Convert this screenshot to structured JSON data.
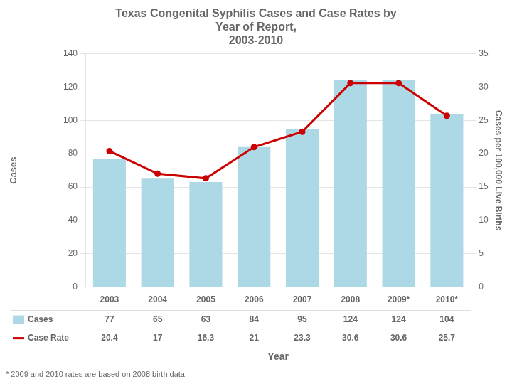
{
  "chart_data": {
    "type": "bar",
    "title": "Texas Congenital Syphilis Cases and Case Rates by\nYear of Report,\n2003-2010",
    "categories": [
      "2003",
      "2004",
      "2005",
      "2006",
      "2007",
      "2008",
      "2009*",
      "2010*"
    ],
    "series": [
      {
        "name": "Cases",
        "type": "bar",
        "color": "#add8e6",
        "values": [
          77,
          65,
          63,
          84,
          95,
          124,
          124,
          104
        ]
      },
      {
        "name": "Case Rate",
        "type": "line",
        "color": "#cc0000",
        "axis": "y2",
        "values": [
          20.4,
          17,
          16.3,
          21,
          23.3,
          30.6,
          30.6,
          25.7
        ]
      }
    ],
    "x_label": "Year",
    "y_label": "Cases",
    "y2_label": "Cases per 100,000 Live Births",
    "ylim": [
      0,
      140
    ],
    "yticks": [
      0,
      20,
      40,
      60,
      80,
      100,
      120,
      140
    ],
    "y2lim": [
      0,
      35
    ],
    "y2ticks": [
      0,
      5,
      10,
      15,
      20,
      25,
      30,
      35
    ],
    "grid": true,
    "legend": "bottom",
    "data_labels": true,
    "annotations": [
      "* 2009 and 2010 rates are based on 2008 birth data."
    ]
  }
}
